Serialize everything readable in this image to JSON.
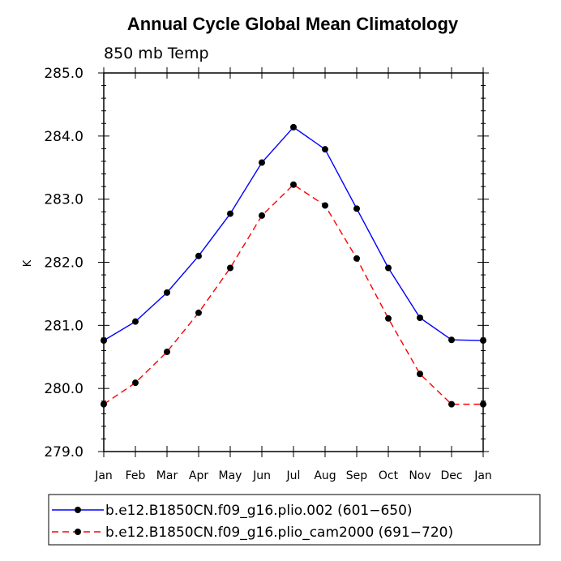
{
  "chart_data": {
    "type": "line",
    "title": "Annual Cycle Global Mean Climatology",
    "subtitle": "850 mb Temp",
    "xlabel": "",
    "ylabel": "K",
    "categories": [
      "Jan",
      "Feb",
      "Mar",
      "Apr",
      "May",
      "Jun",
      "Jul",
      "Aug",
      "Sep",
      "Oct",
      "Nov",
      "Dec",
      "Jan"
    ],
    "ylim": [
      279.0,
      285.0
    ],
    "yticks": [
      "279.0",
      "280.0",
      "281.0",
      "282.0",
      "283.0",
      "284.0",
      "285.0"
    ],
    "legend_position": "bottom",
    "series": [
      {
        "name": "b.e12.B1850CN.f09_g16.plio.002 (601−650)",
        "color": "#0000ff",
        "style": "solid",
        "values": [
          280.76,
          281.06,
          281.52,
          282.1,
          282.77,
          283.58,
          284.14,
          283.79,
          282.85,
          281.91,
          281.12,
          280.77,
          280.76
        ]
      },
      {
        "name": "b.e12.B1850CN.f09_g16.plio_cam2000 (691−720)",
        "color": "#ff0000",
        "style": "dashed",
        "values": [
          279.75,
          280.09,
          280.58,
          281.2,
          281.91,
          282.74,
          283.23,
          282.9,
          282.06,
          281.11,
          280.23,
          279.75,
          279.75
        ]
      }
    ]
  }
}
